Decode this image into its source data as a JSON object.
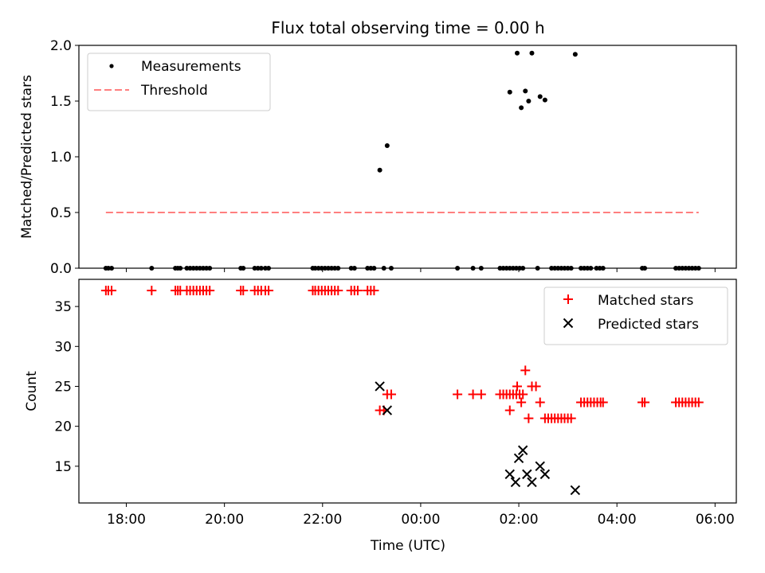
{
  "chart_data": [
    {
      "type": "scatter",
      "title": "Flux total observing time = 0.00 h",
      "xlabel": "",
      "ylabel": "Matched/Predicted stars",
      "xlim": [
        "17:02",
        "06:26"
      ],
      "ylim": [
        0,
        2.0
      ],
      "yticks": [
        "0.0",
        "0.5",
        "1.0",
        "1.5",
        "2.0"
      ],
      "grid": false,
      "legend_position": "top-left",
      "series": [
        {
          "name": "Measurements",
          "marker": "dot",
          "color": "#000000",
          "points": [
            [
              "17:35",
              0
            ],
            [
              "17:38",
              0
            ],
            [
              "17:42",
              0
            ],
            [
              "18:31",
              0
            ],
            [
              "19:00",
              0
            ],
            [
              "19:03",
              0
            ],
            [
              "19:06",
              0
            ],
            [
              "19:14",
              0
            ],
            [
              "19:18",
              0
            ],
            [
              "19:22",
              0
            ],
            [
              "19:26",
              0
            ],
            [
              "19:30",
              0
            ],
            [
              "19:34",
              0
            ],
            [
              "19:38",
              0
            ],
            [
              "19:42",
              0
            ],
            [
              "20:20",
              0
            ],
            [
              "20:23",
              0
            ],
            [
              "20:37",
              0
            ],
            [
              "20:41",
              0
            ],
            [
              "20:45",
              0
            ],
            [
              "20:50",
              0
            ],
            [
              "20:54",
              0
            ],
            [
              "21:48",
              0
            ],
            [
              "21:51",
              0
            ],
            [
              "21:55",
              0
            ],
            [
              "21:59",
              0
            ],
            [
              "22:03",
              0
            ],
            [
              "22:07",
              0
            ],
            [
              "22:11",
              0
            ],
            [
              "22:15",
              0
            ],
            [
              "22:19",
              0
            ],
            [
              "22:35",
              0
            ],
            [
              "22:39",
              0
            ],
            [
              "22:55",
              0
            ],
            [
              "22:59",
              0
            ],
            [
              "23:03",
              0
            ],
            [
              "23:10",
              0.88
            ],
            [
              "23:15",
              0
            ],
            [
              "23:19",
              1.1
            ],
            [
              "23:24",
              0
            ],
            [
              "00:45",
              0
            ],
            [
              "01:04",
              0
            ],
            [
              "01:14",
              0
            ],
            [
              "01:37",
              0
            ],
            [
              "01:41",
              0
            ],
            [
              "01:45",
              0
            ],
            [
              "01:49",
              0
            ],
            [
              "01:53",
              0
            ],
            [
              "01:57",
              0
            ],
            [
              "02:01",
              0
            ],
            [
              "02:05",
              0
            ],
            [
              "01:49",
              1.58
            ],
            [
              "01:58",
              1.93
            ],
            [
              "02:03",
              1.44
            ],
            [
              "02:08",
              1.59
            ],
            [
              "02:12",
              1.5
            ],
            [
              "02:16",
              1.93
            ],
            [
              "02:23",
              0
            ],
            [
              "02:26",
              1.54
            ],
            [
              "02:32",
              1.51
            ],
            [
              "02:40",
              0
            ],
            [
              "02:44",
              0
            ],
            [
              "02:48",
              0
            ],
            [
              "02:52",
              0
            ],
            [
              "02:56",
              0
            ],
            [
              "03:00",
              0
            ],
            [
              "03:04",
              0
            ],
            [
              "03:09",
              1.92
            ],
            [
              "03:16",
              0
            ],
            [
              "03:20",
              0
            ],
            [
              "03:24",
              0
            ],
            [
              "03:28",
              0
            ],
            [
              "03:35",
              0
            ],
            [
              "03:39",
              0
            ],
            [
              "03:43",
              0
            ],
            [
              "04:31",
              0
            ],
            [
              "04:34",
              0
            ],
            [
              "05:12",
              0
            ],
            [
              "05:16",
              0
            ],
            [
              "05:20",
              0
            ],
            [
              "05:24",
              0
            ],
            [
              "05:28",
              0
            ],
            [
              "05:32",
              0
            ],
            [
              "05:36",
              0
            ],
            [
              "05:40",
              0
            ]
          ]
        },
        {
          "name": "Threshold",
          "type": "line",
          "style": "dashed",
          "color": "#ff7f7f",
          "points": [
            [
              "17:35",
              0.5
            ],
            [
              "05:40",
              0.5
            ]
          ]
        }
      ]
    },
    {
      "type": "scatter",
      "title": "",
      "xlabel": "Time (UTC)",
      "ylabel": "Count",
      "xlim": [
        "17:02",
        "06:26"
      ],
      "ylim": [
        10.4,
        38.4
      ],
      "yticks": [
        "15",
        "20",
        "25",
        "30",
        "35"
      ],
      "xticks": [
        "18:00",
        "20:00",
        "22:00",
        "00:00",
        "02:00",
        "04:00",
        "06:00"
      ],
      "grid": false,
      "legend_position": "top-right",
      "series": [
        {
          "name": "Matched stars",
          "marker": "plus",
          "color": "#ff0000",
          "points": [
            [
              "17:35",
              37
            ],
            [
              "17:38",
              37
            ],
            [
              "17:42",
              37
            ],
            [
              "18:31",
              37
            ],
            [
              "19:00",
              37
            ],
            [
              "19:03",
              37
            ],
            [
              "19:06",
              37
            ],
            [
              "19:14",
              37
            ],
            [
              "19:18",
              37
            ],
            [
              "19:22",
              37
            ],
            [
              "19:26",
              37
            ],
            [
              "19:30",
              37
            ],
            [
              "19:34",
              37
            ],
            [
              "19:38",
              37
            ],
            [
              "19:42",
              37
            ],
            [
              "20:20",
              37
            ],
            [
              "20:23",
              37
            ],
            [
              "20:37",
              37
            ],
            [
              "20:41",
              37
            ],
            [
              "20:45",
              37
            ],
            [
              "20:50",
              37
            ],
            [
              "20:54",
              37
            ],
            [
              "21:48",
              37
            ],
            [
              "21:51",
              37
            ],
            [
              "21:55",
              37
            ],
            [
              "21:59",
              37
            ],
            [
              "22:03",
              37
            ],
            [
              "22:07",
              37
            ],
            [
              "22:11",
              37
            ],
            [
              "22:15",
              37
            ],
            [
              "22:19",
              37
            ],
            [
              "22:35",
              37
            ],
            [
              "22:39",
              37
            ],
            [
              "22:43",
              37
            ],
            [
              "22:55",
              37
            ],
            [
              "22:59",
              37
            ],
            [
              "23:03",
              37
            ],
            [
              "23:10",
              22
            ],
            [
              "23:15",
              22
            ],
            [
              "23:19",
              24
            ],
            [
              "23:24",
              24
            ],
            [
              "00:45",
              24
            ],
            [
              "01:04",
              24
            ],
            [
              "01:14",
              24
            ],
            [
              "01:37",
              24
            ],
            [
              "01:41",
              24
            ],
            [
              "01:45",
              24
            ],
            [
              "01:49",
              24
            ],
            [
              "01:53",
              24
            ],
            [
              "01:57",
              24
            ],
            [
              "02:01",
              24
            ],
            [
              "02:05",
              24
            ],
            [
              "01:49",
              22
            ],
            [
              "01:58",
              25
            ],
            [
              "02:03",
              23
            ],
            [
              "02:08",
              27
            ],
            [
              "02:12",
              21
            ],
            [
              "02:16",
              25
            ],
            [
              "02:21",
              25
            ],
            [
              "02:26",
              23
            ],
            [
              "02:32",
              21
            ],
            [
              "02:36",
              21
            ],
            [
              "02:40",
              21
            ],
            [
              "02:44",
              21
            ],
            [
              "02:48",
              21
            ],
            [
              "02:52",
              21
            ],
            [
              "02:56",
              21
            ],
            [
              "03:00",
              21
            ],
            [
              "03:04",
              21
            ],
            [
              "03:16",
              23
            ],
            [
              "03:20",
              23
            ],
            [
              "03:24",
              23
            ],
            [
              "03:28",
              23
            ],
            [
              "03:32",
              23
            ],
            [
              "03:36",
              23
            ],
            [
              "03:40",
              23
            ],
            [
              "03:43",
              23
            ],
            [
              "04:31",
              23
            ],
            [
              "04:34",
              23
            ],
            [
              "05:12",
              23
            ],
            [
              "05:16",
              23
            ],
            [
              "05:20",
              23
            ],
            [
              "05:24",
              23
            ],
            [
              "05:28",
              23
            ],
            [
              "05:32",
              23
            ],
            [
              "05:36",
              23
            ],
            [
              "05:40",
              23
            ]
          ]
        },
        {
          "name": "Predicted stars",
          "marker": "x",
          "color": "#000000",
          "points": [
            [
              "23:10",
              25
            ],
            [
              "23:19",
              22
            ],
            [
              "01:49",
              14
            ],
            [
              "01:56",
              13
            ],
            [
              "02:00",
              16
            ],
            [
              "02:05",
              17
            ],
            [
              "02:10",
              14
            ],
            [
              "02:16",
              13
            ],
            [
              "02:26",
              15
            ],
            [
              "02:32",
              14
            ],
            [
              "03:09",
              12
            ]
          ]
        }
      ]
    }
  ]
}
